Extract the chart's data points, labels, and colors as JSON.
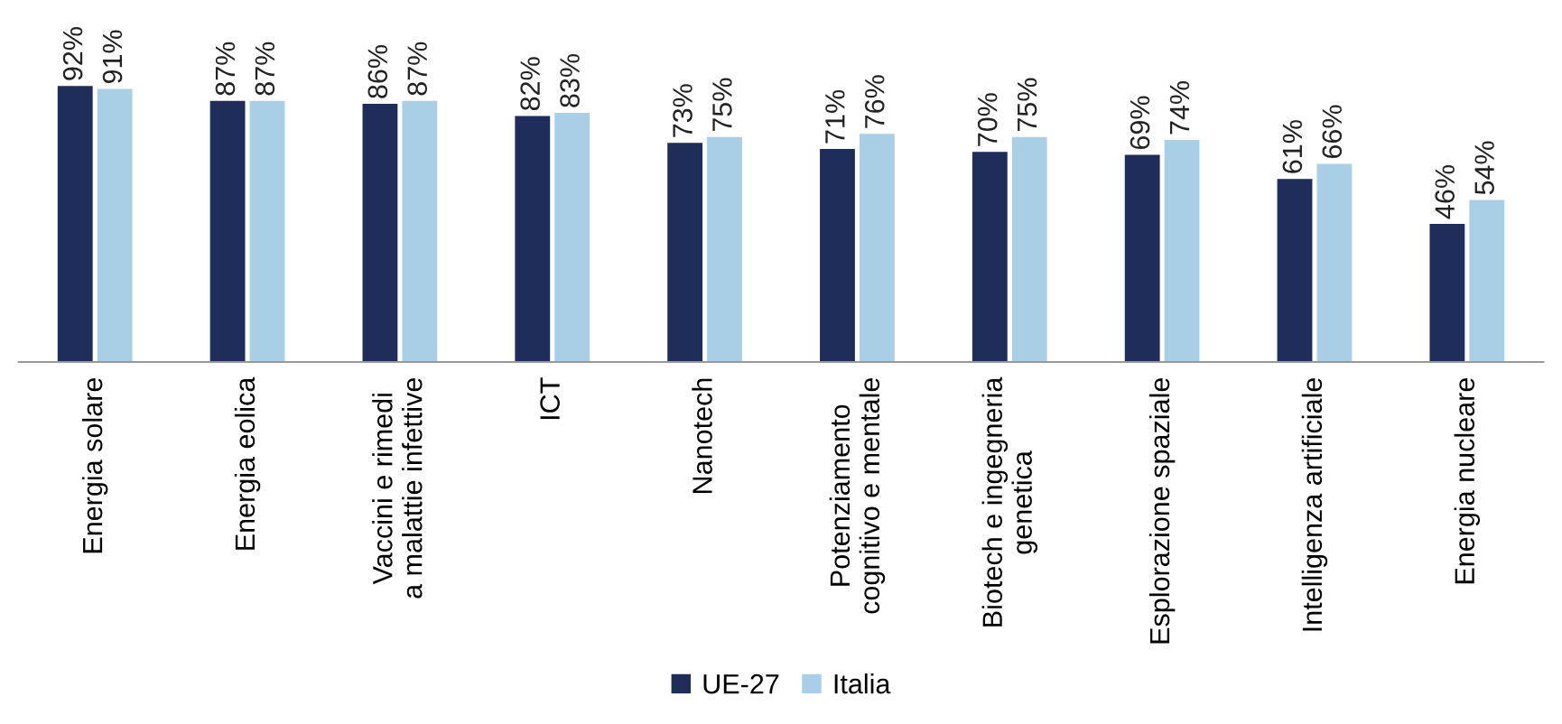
{
  "chart_data": {
    "type": "bar",
    "categories": [
      "Energia solare",
      "Energia eolica",
      "Vaccini e rimedi\na malattie infettive",
      "ICT",
      "Nanotech",
      "Potenziamento\ncognitivo e mentale",
      "Biotech e ingegneria\ngenetica",
      "Esplorazione spaziale",
      "Intelligenza artificiale",
      "Energia nucleare"
    ],
    "series": [
      {
        "name": "UE-27",
        "color": "#1f2d5a",
        "values": [
          92,
          87,
          86,
          82,
          73,
          71,
          70,
          69,
          61,
          46
        ],
        "value_labels": [
          "92%",
          "87%",
          "86%",
          "82%",
          "73%",
          "71%",
          "70%",
          "69%",
          "61%",
          "46%"
        ]
      },
      {
        "name": "Italia",
        "color": "#a9cfe6",
        "values": [
          91,
          87,
          87,
          83,
          75,
          76,
          75,
          74,
          66,
          54
        ],
        "value_labels": [
          "91%",
          "87%",
          "87%",
          "83%",
          "75%",
          "76%",
          "75%",
          "74%",
          "66%",
          "54%"
        ]
      }
    ],
    "legend": "bottom",
    "grid": false
  }
}
